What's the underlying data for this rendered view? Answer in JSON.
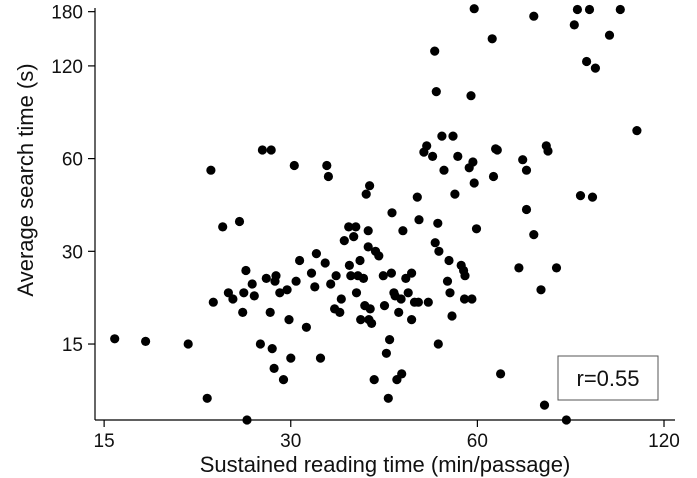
{
  "chart_data": {
    "type": "scatter",
    "xlabel": "Sustained reading time (min/passage)",
    "ylabel": "Average search time (s)",
    "x_scale": "log",
    "y_scale": "log",
    "xlim": [
      14.5,
      125
    ],
    "ylim": [
      8.5,
      185
    ],
    "x_ticks": [
      15,
      30,
      60,
      120
    ],
    "y_ticks": [
      15,
      30,
      60,
      120,
      180
    ],
    "grid": false,
    "annotation": "r=0.55",
    "annotation_position": "bottom-right",
    "points": [
      [
        15.6,
        15.6
      ],
      [
        17.5,
        15.3
      ],
      [
        20.5,
        15
      ],
      [
        22,
        10
      ],
      [
        22.3,
        55
      ],
      [
        22.5,
        20.5
      ],
      [
        23.3,
        36
      ],
      [
        23.8,
        22
      ],
      [
        24.2,
        21
      ],
      [
        24.8,
        37.5
      ],
      [
        25.1,
        19
      ],
      [
        25.2,
        22
      ],
      [
        25.4,
        26
      ],
      [
        25.5,
        8.5
      ],
      [
        26,
        23.5
      ],
      [
        26.2,
        21.5
      ],
      [
        26.8,
        15
      ],
      [
        27,
        64
      ],
      [
        27.4,
        24.5
      ],
      [
        27.8,
        19
      ],
      [
        27.9,
        64
      ],
      [
        28,
        14.5
      ],
      [
        28.2,
        12.5
      ],
      [
        28.3,
        24
      ],
      [
        28.4,
        25
      ],
      [
        28.8,
        22
      ],
      [
        29.2,
        11.5
      ],
      [
        29.6,
        22.5
      ],
      [
        29.8,
        18
      ],
      [
        30,
        13.5
      ],
      [
        30.4,
        57
      ],
      [
        30.6,
        24
      ],
      [
        31,
        28
      ],
      [
        31.8,
        17
      ],
      [
        32.4,
        25.5
      ],
      [
        32.8,
        23
      ],
      [
        33,
        29.5
      ],
      [
        33.5,
        13.5
      ],
      [
        34.1,
        27.5
      ],
      [
        34.3,
        57
      ],
      [
        34.5,
        52.5
      ],
      [
        34.8,
        23.5
      ],
      [
        35.3,
        19.5
      ],
      [
        35.5,
        25
      ],
      [
        36,
        19
      ],
      [
        36.2,
        21
      ],
      [
        36.6,
        32.5
      ],
      [
        37.2,
        36
      ],
      [
        37.3,
        27
      ],
      [
        37.5,
        25
      ],
      [
        37.9,
        33.5
      ],
      [
        38.2,
        36
      ],
      [
        38.3,
        22
      ],
      [
        38.5,
        25
      ],
      [
        38.8,
        28
      ],
      [
        38.9,
        18
      ],
      [
        39.3,
        24.5
      ],
      [
        39.5,
        20
      ],
      [
        39.7,
        46
      ],
      [
        40,
        35
      ],
      [
        40,
        31
      ],
      [
        40.1,
        18
      ],
      [
        40.2,
        49
      ],
      [
        40.3,
        19.5
      ],
      [
        40.5,
        17.5
      ],
      [
        40.9,
        11.5
      ],
      [
        41.1,
        30
      ],
      [
        41.6,
        29
      ],
      [
        42.3,
        25
      ],
      [
        42.5,
        20
      ],
      [
        42.8,
        14
      ],
      [
        43.1,
        10
      ],
      [
        43.3,
        15.5
      ],
      [
        43.6,
        25.5
      ],
      [
        43.7,
        40
      ],
      [
        44,
        22
      ],
      [
        44.2,
        21.5
      ],
      [
        44.5,
        11.5
      ],
      [
        44.8,
        19
      ],
      [
        45.2,
        21
      ],
      [
        45.3,
        12
      ],
      [
        45.5,
        35
      ],
      [
        46,
        24.5
      ],
      [
        46.4,
        22
      ],
      [
        47,
        25.5
      ],
      [
        47,
        18
      ],
      [
        47.5,
        20.5
      ],
      [
        48,
        45
      ],
      [
        48.2,
        20.5
      ],
      [
        48.3,
        38
      ],
      [
        49.2,
        63
      ],
      [
        49.7,
        66
      ],
      [
        50,
        20.5
      ],
      [
        50.8,
        61
      ],
      [
        51.2,
        134
      ],
      [
        51.3,
        32
      ],
      [
        51.5,
        99
      ],
      [
        51.8,
        37
      ],
      [
        51.9,
        15
      ],
      [
        52,
        30
      ],
      [
        52.6,
        71
      ],
      [
        53,
        55
      ],
      [
        53.7,
        24
      ],
      [
        54,
        28
      ],
      [
        54.2,
        22
      ],
      [
        54.6,
        18.5
      ],
      [
        54.8,
        71
      ],
      [
        55.2,
        46
      ],
      [
        55.8,
        61
      ],
      [
        56.5,
        27
      ],
      [
        57,
        26
      ],
      [
        57.2,
        21
      ],
      [
        57.3,
        25
      ],
      [
        58.2,
        56
      ],
      [
        58.6,
        96
      ],
      [
        58.8,
        21
      ],
      [
        59,
        58.5
      ],
      [
        59.3,
        50
      ],
      [
        59.8,
        35.5
      ],
      [
        59.3,
        184
      ],
      [
        63.4,
        147
      ],
      [
        63.7,
        52.5
      ],
      [
        64.2,
        64.5
      ],
      [
        64.6,
        64
      ],
      [
        65.4,
        12
      ],
      [
        70,
        26.5
      ],
      [
        71,
        59.5
      ],
      [
        72,
        41
      ],
      [
        72,
        55
      ],
      [
        74,
        34
      ],
      [
        74,
        174
      ],
      [
        76,
        22.5
      ],
      [
        77,
        9.5
      ],
      [
        77.5,
        66
      ],
      [
        78,
        63.5
      ],
      [
        80.5,
        26.5
      ],
      [
        83.5,
        8.5
      ],
      [
        86,
        163
      ],
      [
        87,
        183
      ],
      [
        88,
        45.5
      ],
      [
        90,
        124
      ],
      [
        91,
        183
      ],
      [
        92,
        45
      ],
      [
        93,
        118
      ],
      [
        98,
        151
      ],
      [
        102,
        183
      ],
      [
        108.5,
        74
      ]
    ]
  }
}
